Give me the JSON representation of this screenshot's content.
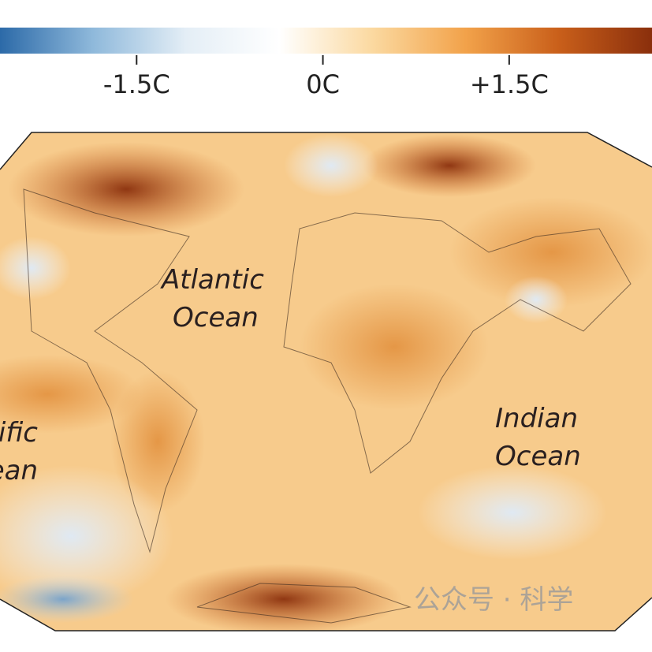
{
  "colorbar": {
    "lim": [
      -2.6,
      2.65
    ],
    "ticks": [
      {
        "value": -1.5,
        "label": "-1.5C"
      },
      {
        "value": 0,
        "label": "0C"
      },
      {
        "value": 1.5,
        "label": "+1.5C"
      }
    ],
    "colors": [
      "#2c6aa8",
      "#8fb9db",
      "#e4eef6",
      "#ffffff",
      "#fbd9a0",
      "#f2a24a",
      "#c95f1a",
      "#8a2f0c"
    ]
  },
  "map": {
    "labels": [
      {
        "lines": [
          "Atlantic",
          "Ocean"
        ]
      },
      {
        "lines": [
          "Indian",
          "Ocean"
        ]
      },
      {
        "lines": [
          "ific",
          "ean"
        ]
      }
    ]
  },
  "watermark": "公众号 · 科学"
}
